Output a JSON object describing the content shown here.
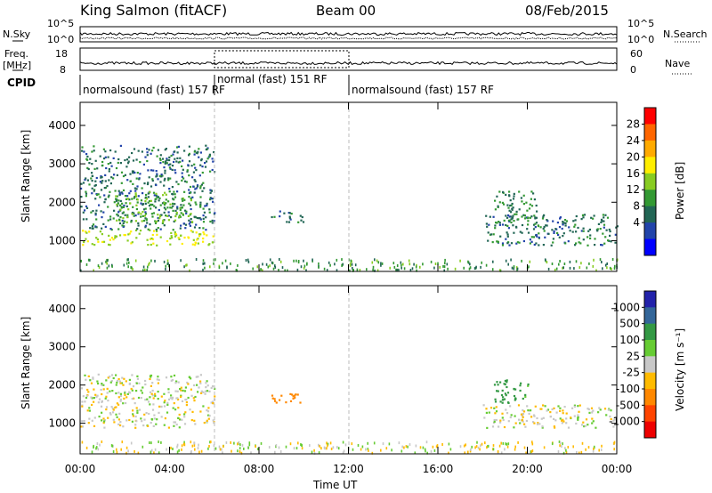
{
  "header": {
    "station": "King Salmon (fitACF)",
    "beam": "Beam 00",
    "date": "08/Feb/2015"
  },
  "noise_panel": {
    "left_label": "N.Sky",
    "right_label": "N.Search",
    "left_ticks": [
      "10^5",
      "10^0"
    ],
    "right_ticks": [
      "10^5",
      "10^0"
    ]
  },
  "freq_panel": {
    "left_label_line1": "Freq.",
    "left_label_line2": "[MHz]",
    "right_label": "Nave",
    "left_ticks": [
      "18",
      "8"
    ],
    "right_ticks": [
      "60",
      "0"
    ]
  },
  "cpid": {
    "label": "CPID",
    "segments": [
      {
        "start": 0,
        "end": 6,
        "text": "normalsound (fast) 157 RF"
      },
      {
        "start": 6,
        "end": 12,
        "text": "normal (fast) 151 RF"
      },
      {
        "start": 12,
        "end": 24,
        "text": "normalsound (fast) 157 RF"
      }
    ]
  },
  "chart_data": [
    {
      "type": "heatmap",
      "name": "power",
      "xlabel": "Time UT",
      "ylabel": "Slant Range [km]",
      "xlim": [
        0,
        24
      ],
      "ylim": [
        200,
        4600
      ],
      "xticks": [
        "00:00",
        "04:00",
        "08:00",
        "12:00",
        "16:00",
        "20:00",
        "00:00"
      ],
      "yticks": [
        1000,
        2000,
        3000,
        4000
      ],
      "colorbar": {
        "label": "Power [dB]",
        "ticks": [
          "28",
          "24",
          "20",
          "16",
          "12",
          "8",
          "4"
        ],
        "colors": [
          "#ff0000",
          "#ff6600",
          "#ffaa00",
          "#ffee00",
          "#88cc22",
          "#339933",
          "#226655",
          "#2244aa",
          "#0000ff"
        ]
      },
      "regions": [
        {
          "t": [
            0.0,
            6.0
          ],
          "range": [
            900,
            1300
          ],
          "level": 16
        },
        {
          "t": [
            0.0,
            6.0
          ],
          "range": [
            1300,
            3500
          ],
          "level": 6
        },
        {
          "t": [
            1.5,
            5.0
          ],
          "range": [
            1500,
            2300
          ],
          "level": 12
        },
        {
          "t": [
            8.5,
            10.0
          ],
          "range": [
            1500,
            1800
          ],
          "level": 6
        },
        {
          "t": [
            18.0,
            24.0
          ],
          "range": [
            900,
            1700
          ],
          "level": 6
        },
        {
          "t": [
            18.5,
            20.5
          ],
          "range": [
            1400,
            2300
          ],
          "level": 8
        }
      ]
    },
    {
      "type": "heatmap",
      "name": "velocity",
      "xlabel": "Time UT",
      "ylabel": "Slant Range [km]",
      "xlim": [
        0,
        24
      ],
      "ylim": [
        200,
        4600
      ],
      "xticks": [
        "00:00",
        "04:00",
        "08:00",
        "12:00",
        "16:00",
        "20:00",
        "00:00"
      ],
      "yticks": [
        1000,
        2000,
        3000,
        4000
      ],
      "colorbar": {
        "label": "Velocity [m s⁻¹]",
        "ticks": [
          "1000",
          "500",
          "100",
          "25",
          "-25",
          "-100",
          "-500",
          "-1000"
        ],
        "colors": [
          "#2222aa",
          "#336699",
          "#339944",
          "#66cc33",
          "#c8c8c8",
          "#ffbb00",
          "#ff8800",
          "#ff4400",
          "#ee0000"
        ]
      },
      "regions": [
        {
          "t": [
            0.0,
            6.0
          ],
          "range": [
            900,
            2300
          ],
          "level": 0
        },
        {
          "t": [
            8.5,
            10.0
          ],
          "range": [
            1500,
            1800
          ],
          "level": -300
        },
        {
          "t": [
            18.5,
            20.0
          ],
          "range": [
            1500,
            2200
          ],
          "level": 150
        },
        {
          "t": [
            18.0,
            24.0
          ],
          "range": [
            900,
            1500
          ],
          "level": 0
        }
      ]
    }
  ]
}
